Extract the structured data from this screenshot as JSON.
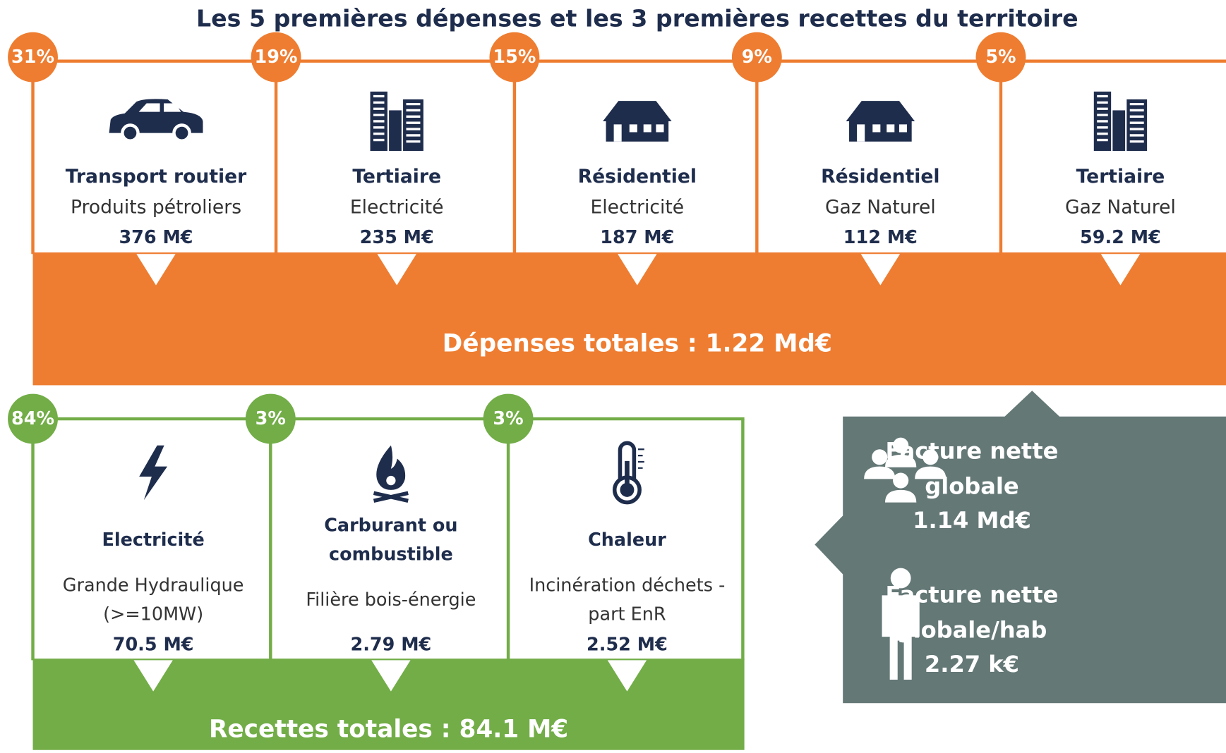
{
  "title": "Les 5 premières dépenses et les 3 premières recettes du territoire",
  "expenses": {
    "items": [
      {
        "percent": "31%",
        "sector": "Transport routier",
        "source": "Produits pétroliers",
        "amount": "376 M€"
      },
      {
        "percent": "19%",
        "sector": "Tertiaire",
        "source": "Electricité",
        "amount": "235 M€"
      },
      {
        "percent": "15%",
        "sector": "Résidentiel",
        "source": "Electricité",
        "amount": "187 M€"
      },
      {
        "percent": "9%",
        "sector": "Résidentiel",
        "source": "Gaz Naturel",
        "amount": "112 M€"
      },
      {
        "percent": "5%",
        "sector": "Tertiaire",
        "source": "Gaz Naturel",
        "amount": "59.2 M€"
      }
    ],
    "total": "Dépenses totales : 1.22 Md€"
  },
  "revenues": {
    "items": [
      {
        "percent": "84%",
        "category": [
          "Electricité"
        ],
        "source": [
          "Grande Hydraulique",
          "(>=10MW)"
        ],
        "amount": "70.5 M€"
      },
      {
        "percent": "3%",
        "category": [
          "Carburant ou",
          "combustible"
        ],
        "source": [
          "Filière bois-énergie"
        ],
        "amount": "2.79 M€"
      },
      {
        "percent": "3%",
        "category": [
          "Chaleur"
        ],
        "source": [
          "Incinération déchets -",
          "part EnR"
        ],
        "amount": "2.52 M€"
      }
    ],
    "total": "Recettes totales : 84.1 M€"
  },
  "net_bill": [
    {
      "label": [
        "Facture nette",
        "globale"
      ],
      "value": "1.14 Md€"
    },
    {
      "label": [
        "Facture nette",
        "globale/hab"
      ],
      "value": "2.27 k€"
    }
  ]
}
